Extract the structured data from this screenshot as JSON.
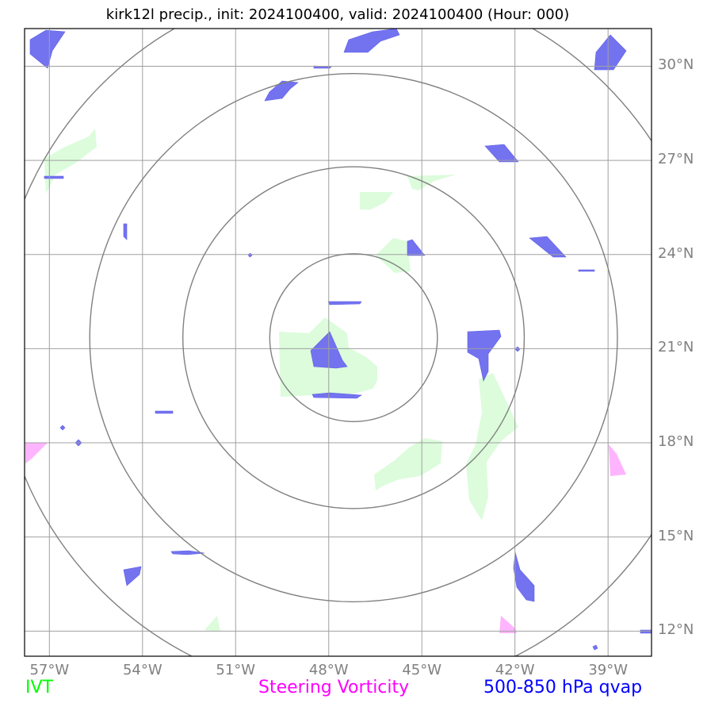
{
  "title": "kirk12l precip., init: 2024100400, valid: 2024100400 (Hour: 000)",
  "map": {
    "lon_min": -57.8,
    "lon_max": -37.6,
    "lat_min": 11.2,
    "lat_max": 31.2,
    "center": {
      "lon": -47.2,
      "lat": 21.35
    },
    "range_rings_deg": [
      2.7,
      5.5,
      8.5,
      11.5
    ],
    "lon_ticks": [
      {
        "value": -57,
        "label": "57°W"
      },
      {
        "value": -54,
        "label": "54°W"
      },
      {
        "value": -51,
        "label": "51°W"
      },
      {
        "value": -48,
        "label": "48°W"
      },
      {
        "value": -45,
        "label": "45°W"
      },
      {
        "value": -42,
        "label": "42°W"
      },
      {
        "value": -39,
        "label": "39°W"
      }
    ],
    "lat_ticks": [
      {
        "value": 30,
        "label": "30°N"
      },
      {
        "value": 27,
        "label": "27°N"
      },
      {
        "value": 24,
        "label": "24°N"
      },
      {
        "value": 21,
        "label": "21°N"
      },
      {
        "value": 18,
        "label": "18°N"
      },
      {
        "value": 15,
        "label": "15°N"
      },
      {
        "value": 12,
        "label": "12°N"
      }
    ]
  },
  "legend": {
    "ivt": {
      "label": "IVT",
      "color": "#00ff00"
    },
    "vorticity": {
      "label": "Steering Vorticity",
      "color": "#ff00ff"
    },
    "qvap": {
      "label": "500-850 hPa qvap",
      "color": "#0000ff"
    }
  },
  "colors": {
    "ivt_fill": "#dcfcdc",
    "vort_fill": "#ffb4ff",
    "qvap_fill": "#7373f0",
    "grid": "#a0a0a0",
    "ring": "#808080"
  }
}
